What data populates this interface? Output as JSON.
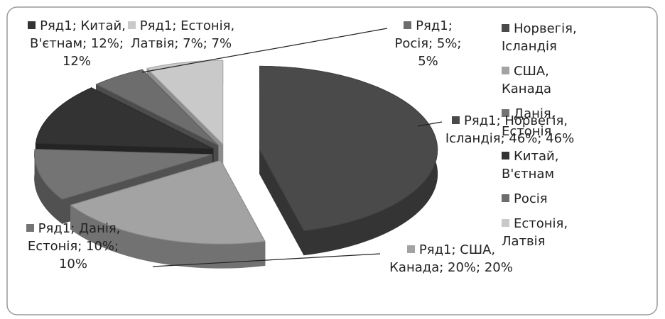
{
  "chart_data": {
    "type": "pie",
    "categories": [
      "Норвегія, Ісландія",
      "США, Канада",
      "Данія, Естонія",
      "Китай, В'єтнам",
      "Росія",
      "Естонія, Латвія"
    ],
    "values": [
      46,
      20,
      10,
      12,
      5,
      7
    ],
    "value_labels": [
      "Ряд1; Норвегія, Ісландія; 46%; 46%",
      "Ряд1; США, Канада; 20%; 20%",
      "Ряд1; Данія, Естонія; 10%; 10%",
      "Ряд1; Китай, В'єтнам; 12%; 12%",
      "Ряд1; Росія; 5%; 5%",
      "Ряд1; Естонія, Латвія; 7%; 7%"
    ],
    "colors": [
      "#4a4a4a",
      "#a3a3a3",
      "#747474",
      "#333333",
      "#6d6d6d",
      "#c9c9c9"
    ],
    "legend": "right"
  }
}
